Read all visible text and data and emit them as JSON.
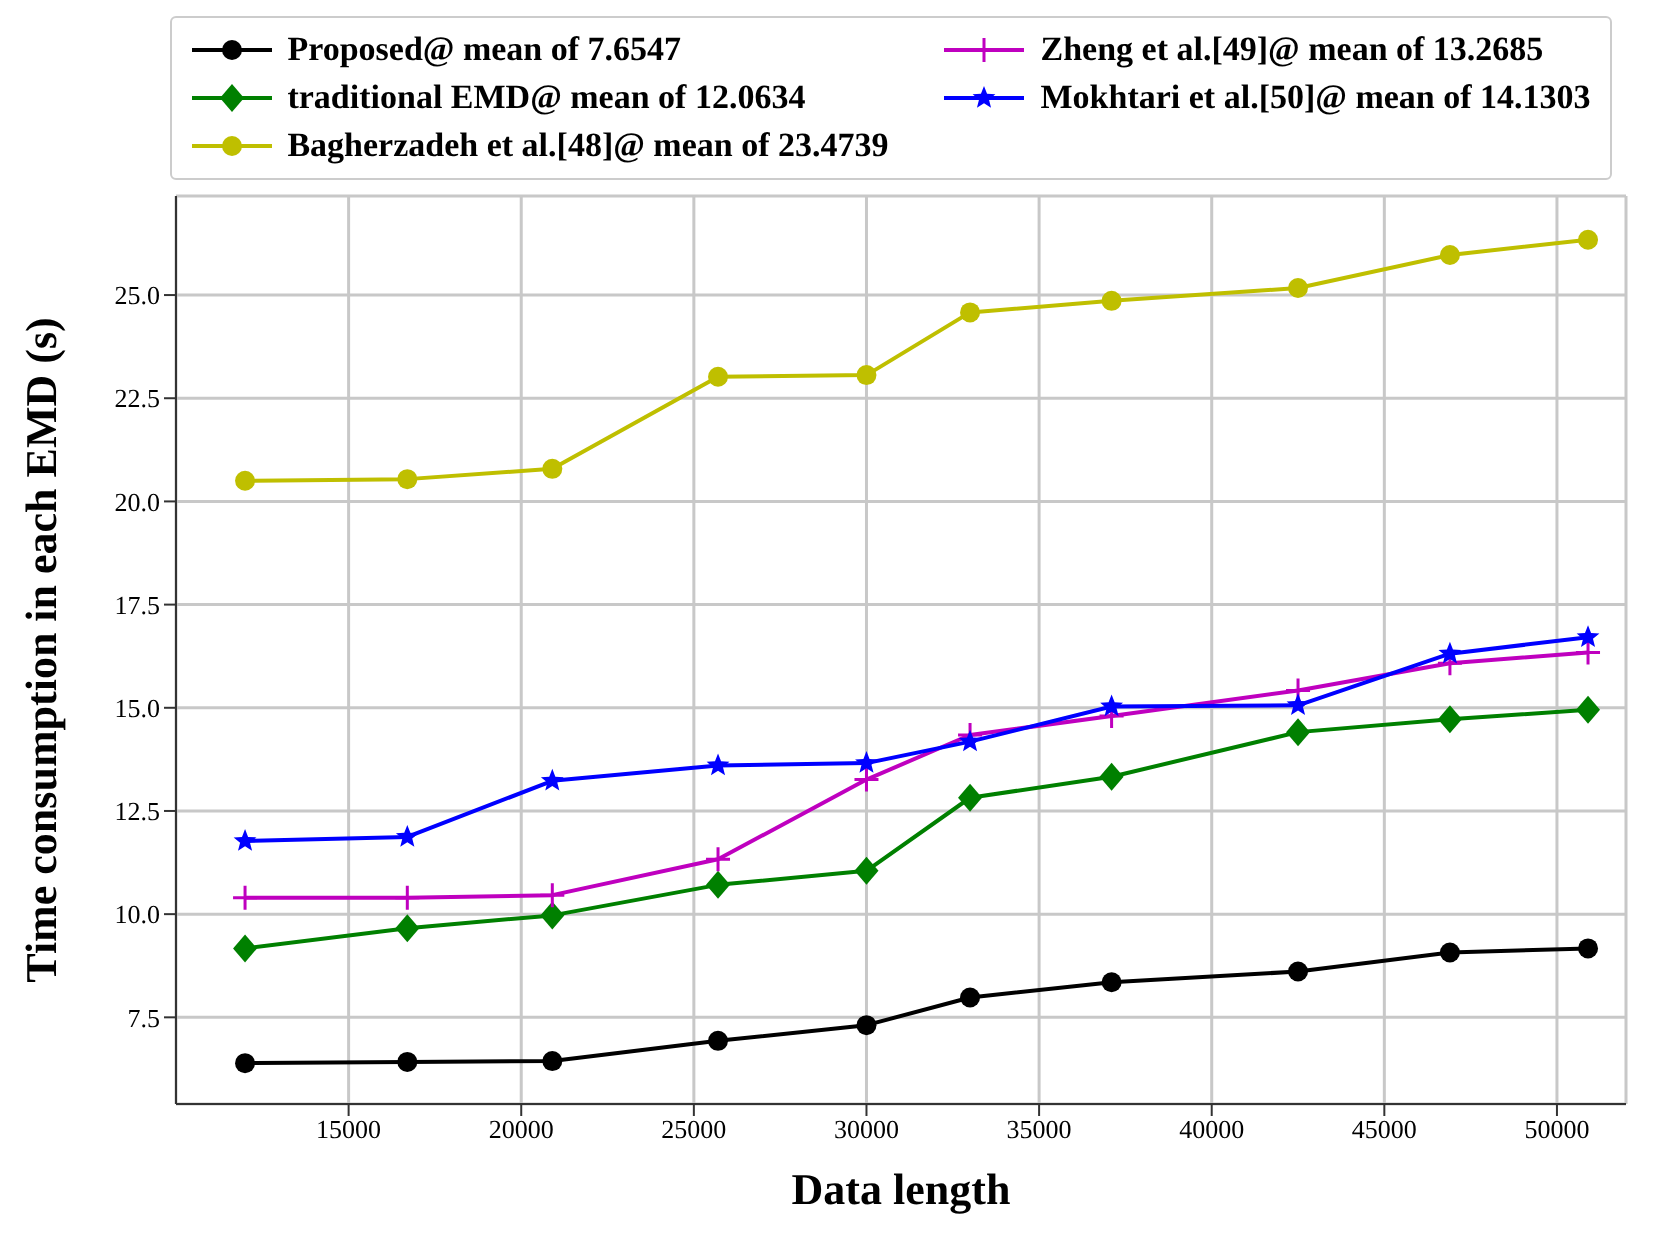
{
  "chart_data": {
    "type": "line",
    "xlabel": "Data length",
    "ylabel": "Time consumption in each EMD (s)",
    "x": [
      12000,
      16700,
      20900,
      25700,
      30000,
      33000,
      37100,
      42500,
      46900,
      50900
    ],
    "series": [
      {
        "name": "Proposed@ mean of 7.6547",
        "color": "#000000",
        "marker": "circle",
        "values": [
          6.39,
          6.42,
          6.44,
          6.93,
          7.31,
          7.98,
          8.35,
          8.61,
          9.07,
          9.17
        ]
      },
      {
        "name": "traditional EMD@ mean of 12.0634",
        "color": "#008000",
        "marker": "diamond",
        "values": [
          9.17,
          9.66,
          9.97,
          10.71,
          11.05,
          12.82,
          13.33,
          14.41,
          14.72,
          14.95
        ]
      },
      {
        "name": "Bagherzadeh et al.[48]@ mean of 23.4739",
        "color": "#bfbf00",
        "marker": "circle",
        "values": [
          20.5,
          20.54,
          20.79,
          23.02,
          23.06,
          24.58,
          24.86,
          25.17,
          25.97,
          26.34
        ]
      },
      {
        "name": "Zheng et al.[49]@ mean of 13.2685",
        "color": "#bf00bf",
        "marker": "cross",
        "values": [
          10.4,
          10.4,
          10.46,
          11.33,
          13.26,
          14.34,
          14.8,
          15.42,
          16.08,
          16.34
        ]
      },
      {
        "name": "Mokhtari et al.[50]@ mean of 14.1303",
        "color": "#0000ff",
        "marker": "star",
        "values": [
          11.77,
          11.87,
          13.23,
          13.6,
          13.66,
          14.18,
          15.03,
          15.06,
          16.31,
          16.71
        ]
      }
    ],
    "xlim": [
      10000,
      52000
    ],
    "xticks": [
      15000,
      20000,
      25000,
      30000,
      35000,
      40000,
      45000,
      50000
    ],
    "ylim": [
      5.4,
      27.4
    ],
    "yticks": [
      {
        "value": 7.5,
        "label": "7.5"
      },
      {
        "value": 10,
        "label": "10.0"
      },
      {
        "value": 12.5,
        "label": "12.5"
      },
      {
        "value": 15,
        "label": "15.0"
      },
      {
        "value": 17.5,
        "label": "17.5"
      },
      {
        "value": 20,
        "label": "20.0"
      },
      {
        "value": 22.5,
        "label": "22.5"
      },
      {
        "value": 25,
        "label": "25.0"
      }
    ],
    "grid": true,
    "legend": "top",
    "line_style": "solid"
  }
}
